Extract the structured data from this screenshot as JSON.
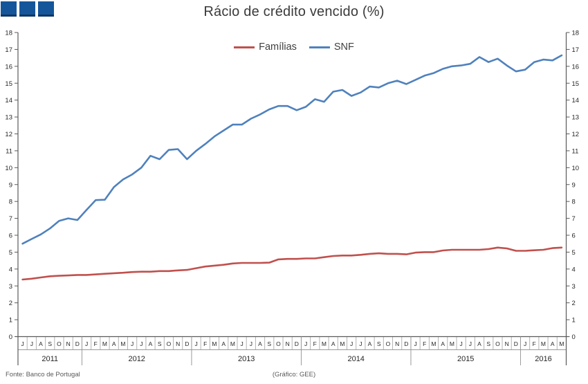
{
  "header": {
    "title": "Rácio de crédito vencido (%)",
    "logo_color": "#15569b",
    "logo_square_count": 3
  },
  "legend": [
    {
      "label": "Famílias",
      "color": "#C0504D"
    },
    {
      "label": "SNF",
      "color": "#4F81BD"
    }
  ],
  "footer": {
    "source": "Fonte: Banco de Portugal",
    "credit": "(Gráfico: GEE)"
  },
  "chart_data": {
    "type": "line",
    "title": "Rácio de crédito vencido (%)",
    "xlabel": "",
    "ylabel": "",
    "ylim": [
      0,
      18
    ],
    "ytick_step": 1,
    "grid": false,
    "legend_position": "top-center",
    "axis_color": "#595959",
    "separator_color": "#9a9a9a",
    "tick_label_color": "#262626",
    "x_months": [
      "J",
      "J",
      "A",
      "S",
      "O",
      "N",
      "D",
      "J",
      "F",
      "M",
      "A",
      "M",
      "J",
      "J",
      "A",
      "S",
      "O",
      "N",
      "D",
      "J",
      "F",
      "M",
      "A",
      "M",
      "J",
      "J",
      "A",
      "S",
      "O",
      "N",
      "D",
      "J",
      "F",
      "M",
      "A",
      "M",
      "J",
      "J",
      "A",
      "S",
      "O",
      "N",
      "D",
      "J",
      "F",
      "M",
      "A",
      "M",
      "J",
      "J",
      "A",
      "S",
      "O",
      "N",
      "D",
      "J",
      "F",
      "M",
      "A",
      "M"
    ],
    "year_groups": [
      {
        "label": "2011",
        "months": 7
      },
      {
        "label": "2012",
        "months": 12
      },
      {
        "label": "2013",
        "months": 12
      },
      {
        "label": "2014",
        "months": 12
      },
      {
        "label": "2015",
        "months": 12
      },
      {
        "label": "2016",
        "months": 5
      }
    ],
    "series": [
      {
        "name": "Famílias",
        "color": "#C0504D",
        "values": [
          3.38,
          3.43,
          3.5,
          3.57,
          3.6,
          3.62,
          3.65,
          3.65,
          3.68,
          3.72,
          3.75,
          3.78,
          3.82,
          3.84,
          3.84,
          3.88,
          3.88,
          3.92,
          3.95,
          4.05,
          4.15,
          4.2,
          4.25,
          4.33,
          4.36,
          4.36,
          4.36,
          4.38,
          4.57,
          4.6,
          4.6,
          4.63,
          4.63,
          4.7,
          4.77,
          4.8,
          4.8,
          4.84,
          4.9,
          4.93,
          4.9,
          4.9,
          4.87,
          4.97,
          5.0,
          5.0,
          5.1,
          5.14,
          5.14,
          5.14,
          5.14,
          5.18,
          5.27,
          5.22,
          5.08,
          5.08,
          5.11,
          5.14,
          5.24,
          5.27
        ]
      },
      {
        "name": "SNF",
        "color": "#4F81BD",
        "values": [
          5.5,
          5.78,
          6.05,
          6.4,
          6.85,
          7.0,
          6.9,
          7.5,
          8.08,
          8.1,
          8.85,
          9.3,
          9.6,
          10.0,
          10.7,
          10.5,
          11.05,
          11.1,
          10.5,
          11.0,
          11.4,
          11.85,
          12.2,
          12.55,
          12.55,
          12.9,
          13.15,
          13.45,
          13.65,
          13.65,
          13.4,
          13.6,
          14.05,
          13.9,
          14.5,
          14.6,
          14.25,
          14.45,
          14.8,
          14.75,
          15.0,
          15.15,
          14.95,
          15.2,
          15.45,
          15.6,
          15.85,
          16.0,
          16.05,
          16.15,
          16.55,
          16.25,
          16.45,
          16.05,
          15.7,
          15.8,
          16.25,
          16.4,
          16.35,
          16.65
        ]
      }
    ]
  }
}
